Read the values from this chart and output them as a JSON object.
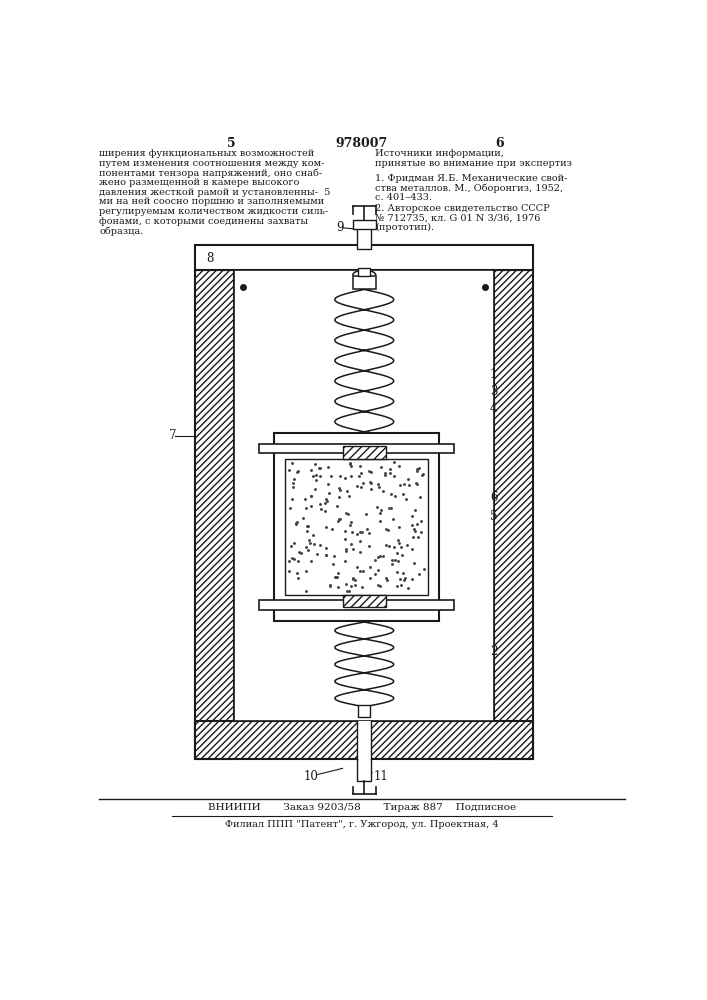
{
  "page_number_left": "5",
  "page_number_right": "6",
  "patent_number": "978007",
  "text_left_lines": [
    "ширения функциональных возможностей",
    "путем изменения соотношения между ком-",
    "понентами тензора напряжений, оно снаб-",
    "жено размещенной в камере высокого",
    "давления жесткой рамой и установленны-  5",
    "ми на ней соосно поршню и заполняемыми",
    "регулируемым количеством жидкости силь-",
    "фонами, с которыми соединены захваты",
    "образца."
  ],
  "text_right_lines": [
    "Источники информации,",
    "принятые во внимание при экспертиз"
  ],
  "text_ref1_lines": [
    "1. Фридман Я.Б. Механические свой-",
    "ства металлов. М., Оборонгиз, 1952,",
    "с. 401–433."
  ],
  "text_ref2_lines": [
    "2. Авторское свидетельство СССР",
    "№ 712735, кл. G 01 N 3/36, 1976",
    "(прототип)."
  ],
  "footer_line1": "ВНИИПИ       Заказ 9203/58       Тираж 887    Подписное",
  "footer_line2": "Филиал ППП \"Патент\", г. Ужгород, ул. Проектная, 4",
  "lc": "#1a1a1a"
}
